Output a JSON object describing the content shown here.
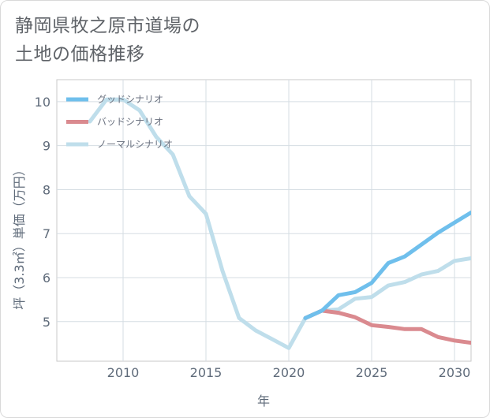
{
  "title_lines": [
    "静岡県牧之原市道場の",
    "土地の価格推移"
  ],
  "chart_data": {
    "type": "line",
    "title": "静岡県牧之原市道場の土地の価格推移",
    "xlabel": "年",
    "ylabel": "坪（3.3㎡）単価（万円）",
    "xlim": [
      2006,
      2031
    ],
    "ylim": [
      4.1,
      10.5
    ],
    "xticks": [
      2010,
      2015,
      2020,
      2025,
      2030
    ],
    "yticks": [
      5,
      6,
      7,
      8,
      9,
      10
    ],
    "grid": true,
    "legend_position": "top-left",
    "series": [
      {
        "name": "グッドシナリオ",
        "color": "#6fbfec",
        "x": [
          2021,
          2022,
          2023,
          2024,
          2025,
          2026,
          2027,
          2028,
          2029,
          2030,
          2031
        ],
        "y": [
          5.08,
          5.25,
          5.6,
          5.67,
          5.88,
          6.33,
          6.48,
          6.75,
          7.02,
          7.25,
          7.48
        ]
      },
      {
        "name": "バッドシナリオ",
        "color": "#da8a8f",
        "x": [
          2021,
          2022,
          2023,
          2024,
          2025,
          2026,
          2027,
          2028,
          2029,
          2030,
          2031
        ],
        "y": [
          5.08,
          5.25,
          5.2,
          5.1,
          4.92,
          4.88,
          4.83,
          4.83,
          4.65,
          4.57,
          4.52
        ]
      },
      {
        "name": "ノーマルシナリオ",
        "color": "#bfdeeb",
        "x": [
          2008,
          2009,
          2010,
          2011,
          2012,
          2013,
          2014,
          2015,
          2016,
          2017,
          2018,
          2019,
          2020,
          2021,
          2022,
          2023,
          2024,
          2025,
          2026,
          2027,
          2028,
          2029,
          2030,
          2031
        ],
        "y": [
          9.55,
          10.05,
          10.05,
          9.8,
          9.2,
          8.8,
          7.85,
          7.45,
          6.15,
          5.08,
          4.8,
          4.6,
          4.4,
          5.08,
          5.25,
          5.28,
          5.52,
          5.56,
          5.82,
          5.9,
          6.07,
          6.15,
          6.38,
          6.44
        ]
      }
    ]
  }
}
